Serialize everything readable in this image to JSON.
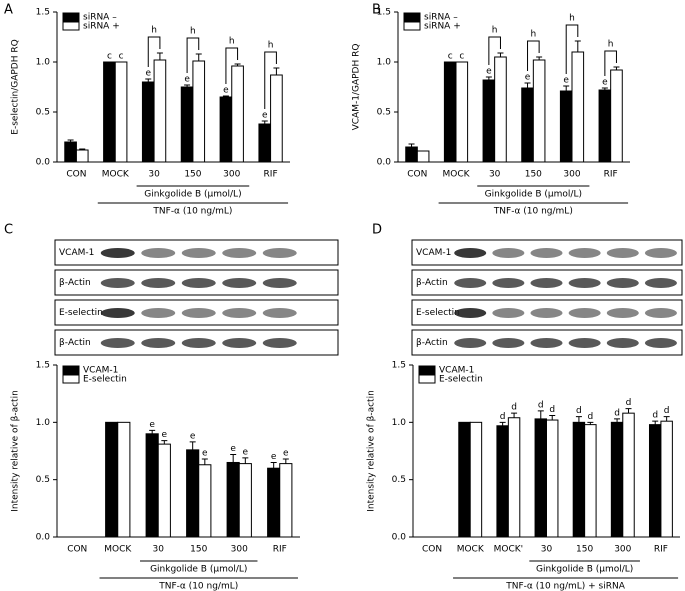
{
  "chart_data": [
    {
      "type": "bar",
      "panel": "A",
      "ylabel": "E-selectin/GAPDH RQ",
      "categories": [
        "CON",
        "MOCK",
        "30",
        "150",
        "300",
        "RIF"
      ],
      "series": [
        {
          "name": "siRNA –",
          "color": "#000000",
          "values": [
            0.2,
            1.0,
            0.8,
            0.75,
            0.65,
            0.38
          ],
          "errors": [
            0.02,
            0,
            0.03,
            0.02,
            0.01,
            0.03
          ],
          "letters": [
            null,
            "c",
            "e",
            "e",
            "e",
            "e"
          ]
        },
        {
          "name": "siRNA +",
          "color": "#ffffff",
          "values": [
            0.12,
            1.0,
            1.02,
            1.01,
            0.96,
            0.87
          ],
          "errors": [
            0.01,
            0,
            0.07,
            0.07,
            0.02,
            0.07
          ],
          "letters": [
            null,
            "c",
            null,
            null,
            null,
            null
          ]
        }
      ],
      "brackets": [
        null,
        null,
        "h",
        "h",
        "h",
        "h"
      ],
      "groups": [
        {
          "label": "Ginkgolide B (μmol/L)",
          "span": [
            "30",
            "300"
          ]
        },
        {
          "label": "TNF-α (10 ng/mL)",
          "span": [
            "MOCK",
            "RIF"
          ]
        }
      ],
      "ylim": [
        0,
        1.5
      ],
      "yticks": [
        {
          "value": 0,
          "label": "0.0"
        },
        0.5,
        {
          "value": 1,
          "label": "1.0"
        },
        1.5
      ],
      "legend": "upper left"
    },
    {
      "type": "bar",
      "panel": "B",
      "ylabel": "VCAM-1/GAPDH RQ",
      "categories": [
        "CON",
        "MOCK",
        "30",
        "150",
        "300",
        "RIF"
      ],
      "series": [
        {
          "name": "siRNA –",
          "color": "#000000",
          "values": [
            0.15,
            1.0,
            0.82,
            0.74,
            0.71,
            0.72
          ],
          "errors": [
            0.03,
            0,
            0.03,
            0.05,
            0.05,
            0.02
          ],
          "letters": [
            null,
            "c",
            "e",
            "e",
            "e",
            "e"
          ]
        },
        {
          "name": "siRNA +",
          "color": "#ffffff",
          "values": [
            0.11,
            1.0,
            1.05,
            1.02,
            1.1,
            0.92
          ],
          "errors": [
            0,
            0,
            0.04,
            0.03,
            0.11,
            0.03
          ],
          "letters": [
            null,
            "c",
            null,
            null,
            null,
            null
          ]
        }
      ],
      "brackets": [
        null,
        null,
        "h",
        "h",
        "h",
        "h"
      ],
      "groups": [
        {
          "label": "Ginkgolide B (μmol/L)",
          "span": [
            "30",
            "300"
          ]
        },
        {
          "label": "TNF-α (10 ng/mL)",
          "span": [
            "MOCK",
            "RIF"
          ]
        }
      ],
      "ylim": [
        0,
        1.5
      ],
      "yticks": [
        {
          "value": 0,
          "label": "0.0"
        },
        0.5,
        {
          "value": 1,
          "label": "1.0"
        },
        1.5
      ],
      "legend": "upper left"
    },
    {
      "type": "bar",
      "panel": "C",
      "ylabel": "Intensity relative of β-actin",
      "blot_labels": [
        "VCAM-1",
        "β-Actin",
        "E-selectin",
        "β-Actin"
      ],
      "categories": [
        "CON",
        "MOCK",
        "30",
        "150",
        "300",
        "RIF"
      ],
      "series": [
        {
          "name": "VCAM-1",
          "color": "#000000",
          "values": [
            null,
            1.0,
            0.9,
            0.76,
            0.65,
            0.6
          ],
          "errors": [
            null,
            0,
            0.03,
            0.07,
            0.07,
            0.05
          ],
          "letters": [
            null,
            null,
            "e",
            "e",
            "e",
            "e"
          ]
        },
        {
          "name": "E-selectin",
          "color": "#ffffff",
          "values": [
            null,
            1.0,
            0.81,
            0.63,
            0.64,
            0.64
          ],
          "errors": [
            null,
            0,
            0.03,
            0.05,
            0.05,
            0.04
          ],
          "letters": [
            null,
            null,
            "e",
            "e",
            "e",
            "e"
          ]
        }
      ],
      "groups": [
        {
          "label": "Ginkgolide B (μmol/L)",
          "span": [
            "30",
            "300"
          ]
        },
        {
          "label": "TNF-α (10 ng/mL)",
          "span": [
            "MOCK",
            "RIF"
          ]
        }
      ],
      "ylim": [
        0,
        1.5
      ],
      "yticks": [
        {
          "value": 0,
          "label": "0.0"
        },
        0.5,
        {
          "value": 1,
          "label": "1.0"
        },
        1.5
      ],
      "legend": "upper left"
    },
    {
      "type": "bar",
      "panel": "D",
      "ylabel": "Intensity relative of β-actin",
      "blot_labels": [
        "VCAM-1",
        "β-Actin",
        "E-selectin",
        "β-Actin"
      ],
      "categories": [
        "CON",
        "MOCK",
        "MOCK'",
        "30",
        "150",
        "300",
        "RIF"
      ],
      "series": [
        {
          "name": "VCAM-1",
          "color": "#000000",
          "values": [
            null,
            1.0,
            0.97,
            1.03,
            1.0,
            1.0,
            0.98
          ],
          "errors": [
            null,
            0,
            0.03,
            0.07,
            0.05,
            0.03,
            0.03
          ],
          "letters": [
            null,
            null,
            "d",
            "d",
            "d",
            "d",
            "d"
          ]
        },
        {
          "name": "E-selectin",
          "color": "#ffffff",
          "values": [
            null,
            1.0,
            1.04,
            1.02,
            0.98,
            1.08,
            1.01
          ],
          "errors": [
            null,
            0,
            0.04,
            0.04,
            0.02,
            0.04,
            0.04
          ],
          "letters": [
            null,
            null,
            "d",
            "d",
            "d",
            "d",
            "d"
          ]
        }
      ],
      "groups": [
        {
          "label": "Ginkgolide B (μmol/L)",
          "span": [
            "30",
            "300"
          ]
        },
        {
          "label": "TNF-α (10 ng/mL) + siRNA",
          "span": [
            "MOCK",
            "RIF"
          ]
        }
      ],
      "ylim": [
        0,
        1.5
      ],
      "yticks": [
        {
          "value": 0,
          "label": "0.0"
        },
        0.5,
        {
          "value": 1,
          "label": "1.0"
        },
        1.5
      ],
      "legend": "upper left"
    }
  ]
}
